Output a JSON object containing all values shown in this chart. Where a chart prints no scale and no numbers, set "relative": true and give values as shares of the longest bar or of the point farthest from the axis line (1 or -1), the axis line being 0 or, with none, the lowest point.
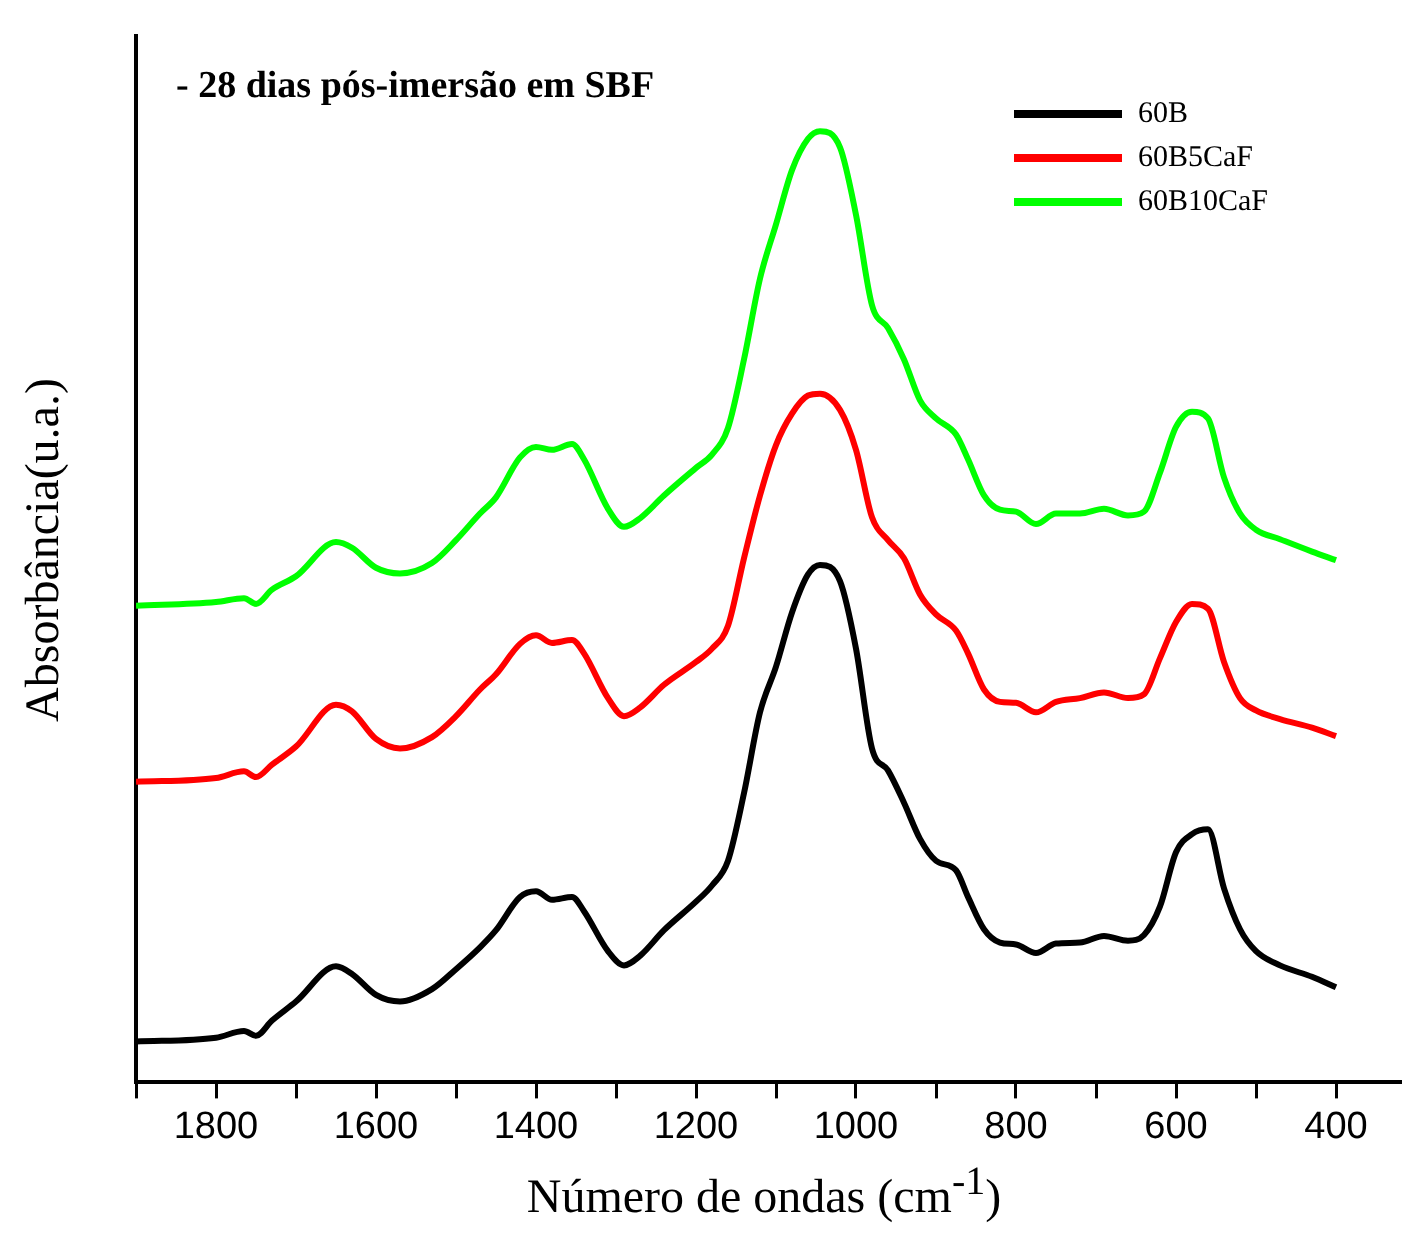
{
  "chart_data": {
    "type": "line",
    "relative": true,
    "xlabel": "Número de ondas (cm$^{-1}$)",
    "ylabel": "Absorbância(u.a.)",
    "annotations": [
      "- 28 dias pós-imersão em SBF"
    ],
    "x": [
      1900,
      1800,
      1765,
      1750,
      1730,
      1700,
      1650,
      1630,
      1600,
      1570,
      1530,
      1500,
      1470,
      1450,
      1420,
      1400,
      1380,
      1355,
      1340,
      1310,
      1290,
      1270,
      1240,
      1200,
      1180,
      1160,
      1140,
      1120,
      1100,
      1080,
      1060,
      1045,
      1020,
      1000,
      980,
      960,
      940,
      920,
      900,
      875,
      860,
      840,
      820,
      800,
      775,
      750,
      720,
      690,
      660,
      640,
      620,
      600,
      580,
      560,
      540,
      520,
      500,
      470,
      430,
      400
    ],
    "xlim": [
      1900,
      320
    ],
    "xticks": [
      {
        "value": 1900,
        "label": null
      },
      1800,
      {
        "value": 1700,
        "label": null
      },
      1600,
      {
        "value": 1500,
        "label": null
      },
      1400,
      {
        "value": 1300,
        "label": null
      },
      1200,
      {
        "value": 1100,
        "label": null
      },
      1000,
      {
        "value": 900,
        "label": null
      },
      800,
      {
        "value": 700,
        "label": null
      },
      600,
      {
        "value": 500,
        "label": null
      },
      400
    ],
    "tick_labels": "x",
    "legend": "top right",
    "line_style": "solid",
    "series": [
      {
        "name": "60B",
        "color": "#000000",
        "values": [
          0.043,
          0.047,
          0.054,
          0.049,
          0.065,
          0.085,
          0.122,
          0.114,
          0.092,
          0.085,
          0.098,
          0.119,
          0.142,
          0.16,
          0.195,
          0.201,
          0.192,
          0.195,
          0.18,
          0.138,
          0.123,
          0.133,
          0.16,
          0.19,
          0.207,
          0.233,
          0.304,
          0.389,
          0.437,
          0.494,
          0.534,
          0.544,
          0.527,
          0.456,
          0.351,
          0.328,
          0.294,
          0.256,
          0.233,
          0.223,
          0.195,
          0.161,
          0.147,
          0.145,
          0.136,
          0.146,
          0.147,
          0.154,
          0.149,
          0.155,
          0.185,
          0.242,
          0.261,
          0.266,
          0.204,
          0.161,
          0.138,
          0.123,
          0.111,
          0.1
        ]
      },
      {
        "name": "60B5CaF",
        "color": "#ff0000",
        "values": [
          0.316,
          0.32,
          0.327,
          0.321,
          0.334,
          0.353,
          0.397,
          0.39,
          0.361,
          0.351,
          0.363,
          0.385,
          0.413,
          0.429,
          0.461,
          0.47,
          0.462,
          0.465,
          0.451,
          0.404,
          0.385,
          0.394,
          0.418,
          0.442,
          0.456,
          0.48,
          0.551,
          0.617,
          0.67,
          0.703,
          0.722,
          0.724,
          0.707,
          0.665,
          0.594,
          0.57,
          0.551,
          0.513,
          0.492,
          0.475,
          0.451,
          0.413,
          0.4,
          0.399,
          0.389,
          0.4,
          0.404,
          0.41,
          0.404,
          0.408,
          0.446,
          0.484,
          0.503,
          0.498,
          0.442,
          0.404,
          0.391,
          0.382,
          0.373,
          0.364
        ]
      },
      {
        "name": "60B10CaF",
        "color": "#00ff00",
        "values": [
          0.501,
          0.505,
          0.509,
          0.503,
          0.518,
          0.532,
          0.568,
          0.562,
          0.541,
          0.535,
          0.546,
          0.57,
          0.598,
          0.615,
          0.657,
          0.668,
          0.665,
          0.671,
          0.655,
          0.603,
          0.584,
          0.593,
          0.617,
          0.646,
          0.66,
          0.688,
          0.76,
          0.845,
          0.902,
          0.959,
          0.992,
          1.0,
          0.983,
          0.912,
          0.817,
          0.793,
          0.76,
          0.717,
          0.698,
          0.681,
          0.655,
          0.617,
          0.602,
          0.6,
          0.587,
          0.598,
          0.598,
          0.603,
          0.596,
          0.6,
          0.641,
          0.689,
          0.705,
          0.698,
          0.636,
          0.598,
          0.581,
          0.571,
          0.558,
          0.549
        ]
      }
    ]
  }
}
